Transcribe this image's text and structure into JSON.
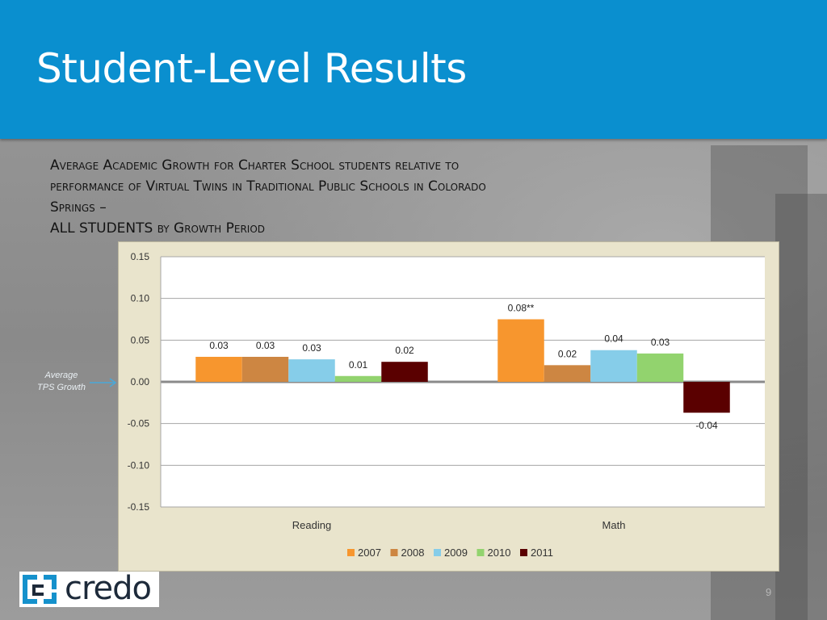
{
  "slide": {
    "title": "Student-Level Results",
    "subtitle_lines": [
      "Average Academic Growth for Charter School students relative to",
      "performance of Virtual Twins in Traditional Public Schools in Colorado",
      "Springs –",
      "ALL STUDENTS by Growth Period"
    ],
    "reference_label_line1": "Average",
    "reference_label_line2": "TPS Growth",
    "logo_text": "credo",
    "page_number": "9"
  },
  "colors": {
    "header_blue": "#0a8fcf",
    "arrow": "#4aa8d8",
    "series": [
      "#f7962e",
      "#cd8642",
      "#86cde9",
      "#92d36e",
      "#5a0000"
    ]
  },
  "chart_data": {
    "type": "bar",
    "categories": [
      "Reading",
      "Math"
    ],
    "series": [
      {
        "name": "2007",
        "values": [
          0.03,
          0.075
        ],
        "labels": [
          "0.03",
          "0.08**"
        ]
      },
      {
        "name": "2008",
        "values": [
          0.03,
          0.02
        ],
        "labels": [
          "0.03",
          "0.02"
        ]
      },
      {
        "name": "2009",
        "values": [
          0.027,
          0.038
        ],
        "labels": [
          "0.03",
          "0.04"
        ]
      },
      {
        "name": "2010",
        "values": [
          0.007,
          0.034
        ],
        "labels": [
          "0.01",
          "0.03"
        ]
      },
      {
        "name": "2011",
        "values": [
          0.024,
          -0.037
        ],
        "labels": [
          "0.02",
          "-0.04"
        ]
      }
    ],
    "yticks": [
      "0.15",
      "0.10",
      "0.05",
      "0.00",
      "-0.05",
      "-0.10",
      "-0.15"
    ],
    "ylim": [
      -0.15,
      0.15
    ],
    "grid": true,
    "legend_position": "bottom"
  }
}
